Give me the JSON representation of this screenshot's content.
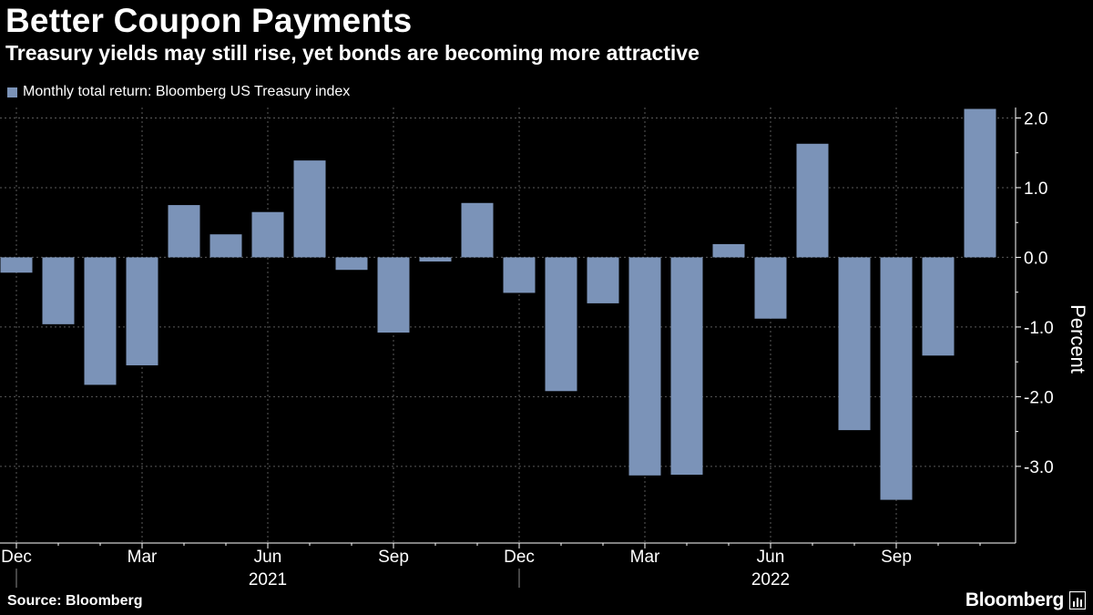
{
  "header": {
    "title": "Better Coupon Payments",
    "subtitle": "Treasury yields may still rise, yet bonds are becoming more attractive"
  },
  "footer": {
    "source": "Source: Bloomberg",
    "brand": "Bloomberg"
  },
  "icons": {
    "brand_icon": "bloomberg-terminal-icon"
  },
  "colors": {
    "background": "#000000",
    "bar": "#7b93b8",
    "grid": "#5a5a5a",
    "text": "#ffffff"
  },
  "chart_data": {
    "type": "bar",
    "title": "Better Coupon Payments",
    "subtitle": "Treasury yields may still rise, yet bonds are becoming more attractive",
    "ylabel": "Percent",
    "xlabel": "",
    "legend": "top-left",
    "grid": true,
    "ylim": [
      -4.1,
      2.15
    ],
    "y_ticks": [
      2.0,
      1.0,
      0.0,
      -1.0,
      -2.0,
      -3.0
    ],
    "y_tick_labels": [
      "2.0",
      "1.0",
      "0.0",
      "-1.0",
      "-2.0",
      "-3.0"
    ],
    "categories": [
      "2020-12",
      "2021-01",
      "2021-02",
      "2021-03",
      "2021-04",
      "2021-05",
      "2021-06",
      "2021-07",
      "2021-08",
      "2021-09",
      "2021-10",
      "2021-11",
      "2021-12",
      "2022-01",
      "2022-02",
      "2022-03",
      "2022-04",
      "2022-05",
      "2022-06",
      "2022-07",
      "2022-08",
      "2022-09",
      "2022-10",
      "2022-11"
    ],
    "x_tick_labels": [
      {
        "category": "2020-12",
        "label": "Dec"
      },
      {
        "category": "2021-03",
        "label": "Mar"
      },
      {
        "category": "2021-06",
        "label": "Jun"
      },
      {
        "category": "2021-09",
        "label": "Sep"
      },
      {
        "category": "2021-12",
        "label": "Dec"
      },
      {
        "category": "2022-03",
        "label": "Mar"
      },
      {
        "category": "2022-06",
        "label": "Jun"
      },
      {
        "category": "2022-09",
        "label": "Sep"
      }
    ],
    "year_labels": [
      {
        "category": "2021-06",
        "label": "2021"
      },
      {
        "category": "2022-06",
        "label": "2022"
      }
    ],
    "series": [
      {
        "name": "Monthly total return: Bloomberg US Treasury index",
        "color": "#7b93b8",
        "values": [
          -0.22,
          -0.96,
          -1.83,
          -1.55,
          0.75,
          0.33,
          0.65,
          1.39,
          -0.18,
          -1.08,
          -0.06,
          0.78,
          -0.51,
          -1.92,
          -0.66,
          -3.13,
          -3.12,
          0.19,
          -0.88,
          1.63,
          -2.48,
          -3.48,
          -1.41,
          2.13
        ]
      }
    ]
  }
}
